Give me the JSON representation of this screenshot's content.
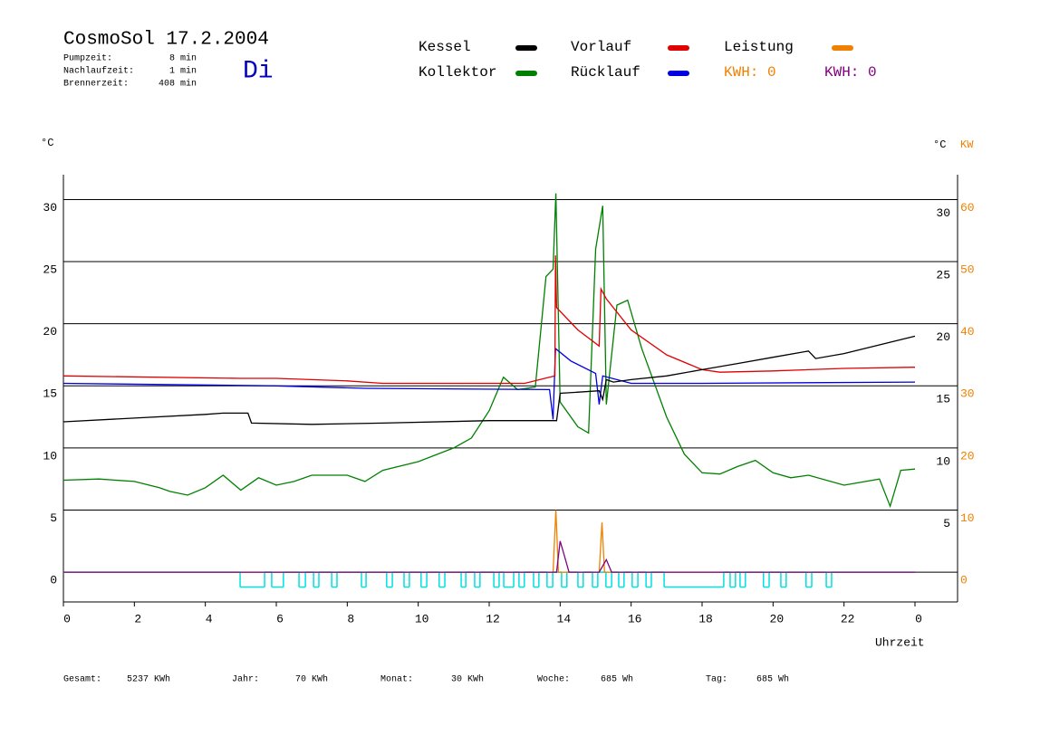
{
  "chart_data": {
    "type": "line",
    "title": "CosmoSol 17.2.2004",
    "weekday": "Di",
    "info": [
      {
        "label": "Pumpzeit:",
        "value": "8 min"
      },
      {
        "label": "Nachlaufzeit:",
        "value": "1 min"
      },
      {
        "label": "Brennerzeit:",
        "value": "408 min"
      }
    ],
    "y_unit": "°C",
    "y2_units": [
      "°C",
      "KW"
    ],
    "x_label": "Uhrzeit",
    "xlim": [
      0,
      25.2
    ],
    "xticks": [
      0,
      2,
      4,
      6,
      8,
      10,
      12,
      14,
      16,
      18,
      20,
      22,
      {
        "value": 24,
        "label": "0"
      }
    ],
    "ylim": [
      -2.4,
      32
    ],
    "yticks": [
      0,
      5,
      10,
      15,
      20,
      25,
      30
    ],
    "y_right_ticks": [
      5,
      10,
      15,
      20,
      25,
      30
    ],
    "y2lim": [
      -4.8,
      64
    ],
    "y2ticks": [
      0,
      10,
      20,
      30,
      40,
      50,
      60
    ],
    "grid": true,
    "series": [
      {
        "name": "Kessel",
        "color": "#000000",
        "x": [
          0,
          2,
          4,
          4.5,
          5.2,
          5.3,
          7,
          9,
          12,
          13.9,
          14,
          15.1,
          15.2,
          15.3,
          15.5,
          16,
          17,
          18,
          19,
          20,
          21,
          21.2,
          22,
          23,
          24
        ],
        "values": [
          12.1,
          12.4,
          12.7,
          12.8,
          12.8,
          12.0,
          11.9,
          12.0,
          12.2,
          12.2,
          14.4,
          14.6,
          13.9,
          15.5,
          15.3,
          15.5,
          15.8,
          16.3,
          16.8,
          17.3,
          17.8,
          17.2,
          17.6,
          18.3,
          19.0
        ]
      },
      {
        "name": "Vorlauf",
        "color": "#e00000",
        "x": [
          0,
          5,
          6,
          8,
          9,
          13,
          13.85,
          13.87,
          13.9,
          14.5,
          15.1,
          15.15,
          15.3,
          16,
          17,
          18,
          18.5,
          20,
          22,
          24
        ],
        "values": [
          15.8,
          15.6,
          15.6,
          15.4,
          15.2,
          15.2,
          15.8,
          25.5,
          21.3,
          19.5,
          18.2,
          22.8,
          22.0,
          19.5,
          17.5,
          16.3,
          16.1,
          16.2,
          16.4,
          16.5
        ]
      },
      {
        "name": "Leistung",
        "color": "#f08000",
        "axis": "y2",
        "x": [
          0,
          13.8,
          13.88,
          13.95,
          15.1,
          15.18,
          15.25,
          24
        ],
        "values": [
          0,
          0,
          10,
          0,
          0,
          8,
          0,
          0
        ]
      },
      {
        "name": "Kollektor",
        "color": "#008000",
        "x": [
          0,
          1,
          2,
          2.7,
          3,
          3.5,
          4,
          4.5,
          5,
          5.5,
          6,
          6.5,
          7,
          8,
          8.5,
          9,
          10,
          11,
          11.5,
          12,
          12.4,
          12.8,
          13.3,
          13.6,
          13.8,
          13.88,
          14,
          14.5,
          14.8,
          15,
          15.2,
          15.3,
          15.6,
          15.9,
          16.3,
          17,
          17.5,
          18,
          18.5,
          19,
          19.5,
          20,
          20.5,
          21,
          22,
          23,
          23.3,
          23.6,
          24
        ],
        "values": [
          7.4,
          7.5,
          7.3,
          6.8,
          6.5,
          6.2,
          6.8,
          7.8,
          6.6,
          7.6,
          7.0,
          7.3,
          7.8,
          7.8,
          7.3,
          8.2,
          8.9,
          10.0,
          10.8,
          13.0,
          15.7,
          14.7,
          14.9,
          23.8,
          24.4,
          30.5,
          13.7,
          11.7,
          11.2,
          26.0,
          29.5,
          13.5,
          21.5,
          21.9,
          18.0,
          12.5,
          9.5,
          8.0,
          7.9,
          8.5,
          9.0,
          8.0,
          7.6,
          7.8,
          7.0,
          7.5,
          5.3,
          8.2,
          8.3
        ]
      },
      {
        "name": "Rücklauf",
        "color": "#0000e0",
        "x": [
          0,
          6,
          8.5,
          13.7,
          13.8,
          13.87,
          14.3,
          15,
          15.1,
          15.2,
          16,
          18,
          24
        ],
        "values": [
          15.2,
          15.0,
          14.8,
          14.7,
          12.3,
          18.0,
          17.0,
          16.0,
          13.5,
          15.8,
          15.2,
          15.2,
          15.3
        ]
      },
      {
        "color": "#800080",
        "axis": "y2",
        "x": [
          0,
          13.9,
          14.0,
          14.1,
          14.25,
          15.1,
          15.3,
          15.45,
          24
        ],
        "values": [
          0,
          0,
          5,
          3,
          0,
          0,
          2,
          0,
          0
        ]
      }
    ],
    "pump": {
      "color": "#00e0e0",
      "x": [
        0,
        4.98,
        5.67,
        5.87,
        6.2,
        6.64,
        6.82,
        7.05,
        7.2,
        7.56,
        7.71,
        8.4,
        8.53,
        9.11,
        9.27,
        9.6,
        9.75,
        10.08,
        10.24,
        10.59,
        10.75,
        11.21,
        11.34,
        11.59,
        11.74,
        12.13,
        12.28,
        12.41,
        12.69,
        12.84,
        12.99,
        13.25,
        13.4,
        13.63,
        13.79,
        14.04,
        14.19,
        14.5,
        14.65,
        14.91,
        15.06,
        15.29,
        15.45,
        15.65,
        15.8,
        16.03,
        16.19,
        16.42,
        16.57,
        16.93,
        18.61,
        18.79,
        18.94,
        19.07,
        19.22,
        19.73,
        19.89,
        20.22,
        20.37,
        20.93,
        21.09,
        21.5,
        21.65,
        24
      ],
      "values": [
        0,
        -1.2,
        0,
        -1.2,
        0,
        -1.2,
        0,
        -1.2,
        0,
        -1.2,
        0,
        -1.2,
        0,
        -1.2,
        0,
        -1.2,
        0,
        -1.2,
        0,
        -1.2,
        0,
        -1.2,
        0,
        -1.2,
        0,
        -1.2,
        0,
        -1.2,
        0,
        -1.2,
        0,
        -1.2,
        0,
        -1.2,
        0,
        -1.2,
        0,
        -1.2,
        0,
        -1.2,
        0,
        -1.2,
        0,
        -1.2,
        0,
        -1.2,
        0,
        -1.2,
        0,
        -1.2,
        0,
        -1.2,
        0,
        -1.2,
        0,
        -1.2,
        0,
        -1.2,
        0,
        -1.2,
        0,
        -1.2,
        0,
        0
      ]
    },
    "kwh_labels": [
      {
        "text": "KWH: 0",
        "color": "#f08000"
      },
      {
        "text": "KWH: 0",
        "color": "#800080"
      }
    ],
    "totals": [
      {
        "label": "Gesamt:",
        "value": "5237 KWh"
      },
      {
        "label": "Jahr:",
        "value": "70 KWh"
      },
      {
        "label": "Monat:",
        "value": "30 KWh"
      },
      {
        "label": "Woche:",
        "value": "685 Wh"
      },
      {
        "label": "Tag:",
        "value": "685 Wh"
      }
    ]
  }
}
